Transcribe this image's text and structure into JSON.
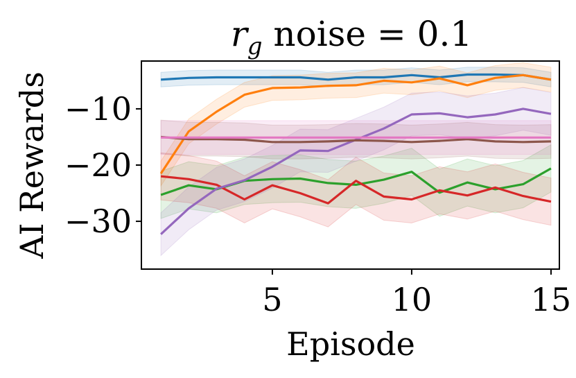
{
  "chart_data": {
    "type": "line",
    "title": {
      "symbol": "r",
      "subscript": "g",
      "rest": " noise = 0.1"
    },
    "xlabel": "Episode",
    "ylabel": "AI Rewards",
    "xlim": [
      0.3,
      15.3
    ],
    "ylim": [
      -38.5,
      -1.5
    ],
    "xticks": [
      5,
      10,
      15
    ],
    "yticks": [
      -10,
      -20,
      -30
    ],
    "xtick_labels": [
      "5",
      "10",
      "15"
    ],
    "ytick_labels": [
      "−10",
      "−20",
      "−30"
    ],
    "grid": false,
    "legend": "none",
    "x": [
      1,
      2,
      3,
      4,
      5,
      6,
      7,
      8,
      9,
      10,
      11,
      12,
      13,
      14,
      15
    ],
    "series": [
      {
        "color": "#1f77b4",
        "values": [
          -4.8,
          -4.5,
          -4.4,
          -4.4,
          -4.4,
          -4.4,
          -4.8,
          -4.4,
          -4.4,
          -4.0,
          -4.4,
          -3.9,
          -3.9,
          -4.0,
          -4.8
        ],
        "band": 1.3
      },
      {
        "color": "#ff7f0e",
        "values": [
          -21.5,
          -14.0,
          -10.5,
          -7.5,
          -6.3,
          -6.2,
          -5.9,
          -5.8,
          -5.0,
          -5.3,
          -4.6,
          -5.8,
          -4.5,
          -4.0,
          -4.8
        ],
        "band": 2.2
      },
      {
        "color": "#2ca02c",
        "values": [
          -25.3,
          -23.6,
          -24.3,
          -22.8,
          -22.5,
          -22.4,
          -23.2,
          -23.5,
          -22.6,
          -21.2,
          -24.9,
          -23.1,
          -24.3,
          -23.4,
          -20.6
        ],
        "band": 4.2
      },
      {
        "color": "#d62728",
        "values": [
          -22.0,
          -22.5,
          -23.5,
          -26.1,
          -23.6,
          -25.0,
          -26.8,
          -22.8,
          -25.6,
          -26.1,
          -24.5,
          -25.4,
          -24.0,
          -25.5,
          -26.5
        ],
        "band": 4.2
      },
      {
        "color": "#9467bd",
        "values": [
          -32.3,
          -27.7,
          -24.2,
          -22.7,
          -20.3,
          -17.4,
          -17.5,
          -15.5,
          -13.5,
          -11.0,
          -10.8,
          -11.5,
          -11.0,
          -10.0,
          -10.9
        ],
        "band": 3.8
      },
      {
        "color": "#8c564b",
        "values": [
          -15.0,
          -15.4,
          -15.4,
          -15.5,
          -15.9,
          -15.9,
          -15.8,
          -15.6,
          -15.7,
          -15.9,
          -15.7,
          -15.4,
          -15.8,
          -15.9,
          -15.8
        ],
        "band": 3.0
      },
      {
        "color": "#e377c2",
        "values": [
          -15.1,
          -15.1,
          -15.1,
          -15.1,
          -15.1,
          -15.1,
          -15.1,
          -15.1,
          -15.1,
          -15.1,
          -15.1,
          -15.1,
          -15.1,
          -15.1,
          -15.1
        ],
        "band": 3.0
      }
    ]
  }
}
